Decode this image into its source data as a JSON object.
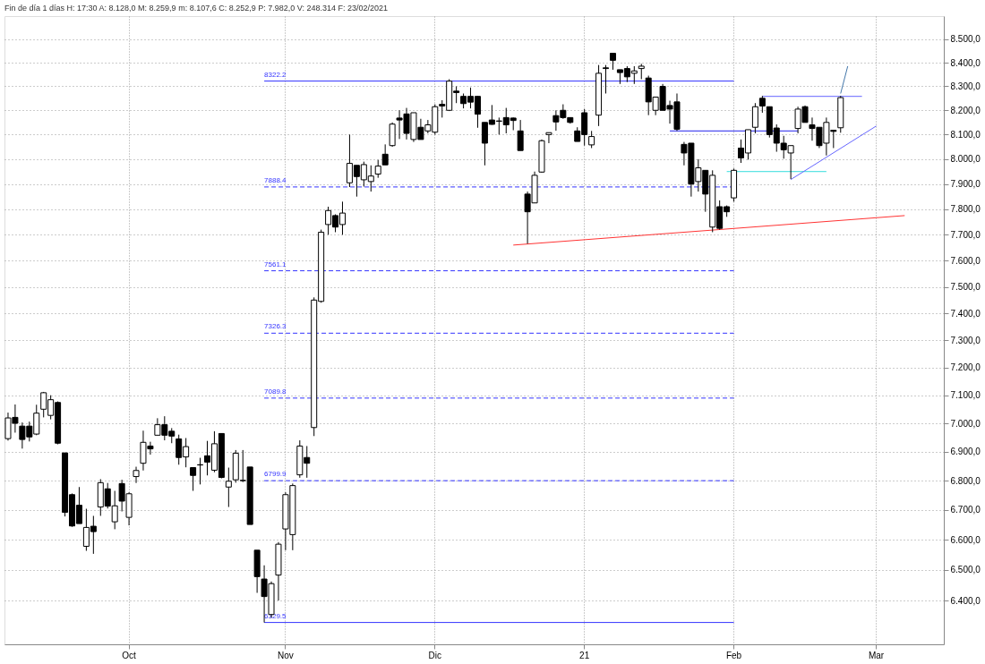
{
  "chart_data": {
    "type": "candlestick",
    "title": "Fin de día 1 días H: 17:30 A: 8.128,0 M: 8.259,9 m: 8.107,6 C: 8.252,9 P: 7.982,0 V: 248.314 F: 23/02/2021",
    "categories": [
      null,
      null,
      null,
      null,
      null,
      null,
      null,
      null,
      null,
      null,
      null,
      null,
      null,
      null,
      null,
      null,
      null,
      "Oct",
      null,
      null,
      null,
      null,
      null,
      null,
      null,
      null,
      null,
      null,
      null,
      null,
      null,
      null,
      null,
      null,
      null,
      null,
      null,
      null,
      null,
      "Nov",
      null,
      null,
      null,
      null,
      null,
      null,
      null,
      null,
      null,
      null,
      null,
      null,
      null,
      null,
      null,
      null,
      null,
      null,
      null,
      null,
      "Dic",
      null,
      null,
      null,
      null,
      null,
      null,
      null,
      null,
      null,
      null,
      null,
      null,
      null,
      null,
      null,
      null,
      null,
      null,
      null,
      null,
      "21",
      null,
      null,
      null,
      null,
      null,
      null,
      null,
      null,
      null,
      null,
      null,
      null,
      null,
      null,
      null,
      null,
      null,
      null,
      null,
      null,
      "Feb",
      null,
      null,
      null,
      null,
      null,
      null,
      null,
      null,
      null,
      null,
      null,
      null,
      null,
      null,
      null,
      null,
      null,
      null,
      null,
      "Mar",
      null,
      null,
      null,
      null,
      null,
      null,
      null,
      null,
      null
    ],
    "ohlc": [
      [
        6946,
        7038,
        6939,
        7019
      ],
      [
        7021,
        7067,
        6967,
        7000
      ],
      [
        6990,
        7003,
        6911,
        6943
      ],
      [
        6990,
        7006,
        6936,
        6952
      ],
      [
        6962,
        7066,
        6958,
        7036
      ],
      [
        7050,
        7112,
        7021,
        7109
      ],
      [
        7028,
        7100,
        7014,
        7084
      ],
      [
        7074,
        7078,
        6926,
        6930
      ],
      [
        6896,
        6896,
        6678,
        6692
      ],
      [
        6752,
        6756,
        6643,
        6646
      ],
      [
        6716,
        6778,
        6654,
        6654
      ],
      [
        6578,
        6704,
        6563,
        6641
      ],
      [
        6645,
        6680,
        6553,
        6627
      ],
      [
        6710,
        6805,
        6680,
        6793
      ],
      [
        6772,
        6792,
        6705,
        6713
      ],
      [
        6660,
        6765,
        6635,
        6714
      ],
      [
        6790,
        6803,
        6695,
        6730
      ],
      [
        6675,
        6760,
        6648,
        6755
      ],
      [
        6814,
        6848,
        6792,
        6835
      ],
      [
        6860,
        6974,
        6835,
        6933
      ],
      [
        6920,
        6935,
        6890,
        6910
      ],
      [
        6958,
        7018,
        6958,
        6995
      ],
      [
        6995,
        7025,
        6940,
        6958
      ],
      [
        6972,
        6983,
        6930,
        6955
      ],
      [
        6945,
        6960,
        6855,
        6880
      ],
      [
        6882,
        6948,
        6846,
        6918
      ],
      [
        6845,
        6845,
        6765,
        6818
      ],
      [
        6855,
        6879,
        6787,
        6854
      ],
      [
        6886,
        6938,
        6818,
        6864
      ],
      [
        6836,
        6972,
        6829,
        6928
      ],
      [
        6964,
        6964,
        6808,
        6811
      ],
      [
        6778,
        6845,
        6710,
        6798
      ],
      [
        6803,
        6906,
        6793,
        6895
      ],
      [
        6800,
        6906,
        6795,
        6801
      ],
      [
        6847,
        6847,
        6651,
        6651
      ],
      [
        6565,
        6565,
        6425,
        6478
      ],
      [
        6470,
        6515,
        6329.5,
        6413
      ],
      [
        6355,
        6462,
        6345,
        6455
      ],
      [
        6483,
        6592,
        6400,
        6585
      ],
      [
        6636,
        6760,
        6565,
        6752
      ],
      [
        6617,
        6790,
        6565,
        6783
      ],
      [
        6820,
        6940,
        6810,
        6920
      ],
      [
        6880,
        6920,
        6810,
        6860
      ],
      [
        6985,
        7460,
        6955,
        7450
      ],
      [
        7445,
        7720,
        7440,
        7710
      ],
      [
        7740,
        7810,
        7700,
        7795
      ],
      [
        7775,
        7780,
        7710,
        7730
      ],
      [
        7740,
        7830,
        7700,
        7785
      ],
      [
        7905,
        8100,
        7888,
        7983
      ],
      [
        7975,
        7975,
        7850,
        7930
      ],
      [
        7917,
        7990,
        7890,
        7978
      ],
      [
        7910,
        7975,
        7870,
        7932
      ],
      [
        7940,
        7997,
        7925,
        7972
      ],
      [
        8020,
        8060,
        7977,
        7977
      ],
      [
        8055,
        8150,
        8050,
        8143
      ],
      [
        8168,
        8200,
        8082,
        8160
      ],
      [
        8185,
        8210,
        8080,
        8105
      ],
      [
        8080,
        8190,
        8070,
        8190
      ],
      [
        8130,
        8165,
        8080,
        8080
      ],
      [
        8115,
        8160,
        8105,
        8140
      ],
      [
        8110,
        8225,
        8100,
        8215
      ],
      [
        8225,
        8242,
        8170,
        8218
      ],
      [
        8200,
        8330,
        8197,
        8322
      ],
      [
        8280,
        8300,
        8230,
        8274
      ],
      [
        8258,
        8270,
        8208,
        8228
      ],
      [
        8258,
        8295,
        8208,
        8234
      ],
      [
        8258,
        8260,
        8128,
        8184
      ],
      [
        8150,
        8150,
        7975,
        8065
      ],
      [
        8160,
        8222,
        8140,
        8142
      ],
      [
        8156,
        8170,
        8100,
        8155
      ],
      [
        8170,
        8210,
        8105,
        8140
      ],
      [
        8168,
        8170,
        8118,
        8158
      ],
      [
        8115,
        8160,
        8035,
        8035
      ],
      [
        7860,
        7870,
        7665,
        7790
      ],
      [
        7825,
        7950,
        7825,
        7935
      ],
      [
        7948,
        8080,
        7945,
        8075
      ],
      [
        8100,
        8108,
        8065,
        8108
      ],
      [
        8178,
        8200,
        8116,
        8152
      ],
      [
        8200,
        8225,
        8165,
        8170
      ],
      [
        8170,
        8170,
        8145,
        8150
      ],
      [
        8115,
        8130,
        8072,
        8072
      ],
      [
        8190,
        8205,
        8055,
        8100
      ],
      [
        8058,
        8115,
        8045,
        8092
      ],
      [
        8180,
        8390,
        8135,
        8355
      ],
      [
        8378,
        8390,
        8270,
        8375
      ],
      [
        8440,
        8440,
        8370,
        8410
      ],
      [
        8370,
        8370,
        8310,
        8358
      ],
      [
        8375,
        8385,
        8318,
        8340
      ],
      [
        8355,
        8385,
        8310,
        8365
      ],
      [
        8375,
        8395,
        8330,
        8385
      ],
      [
        8335,
        8345,
        8180,
        8235
      ],
      [
        8200,
        8255,
        8180,
        8255
      ],
      [
        8300,
        8310,
        8200,
        8200
      ],
      [
        8220,
        8240,
        8145,
        8205
      ],
      [
        8235,
        8270,
        8115,
        8122
      ],
      [
        8060,
        8070,
        7975,
        8025
      ],
      [
        8065,
        8065,
        7850,
        7900
      ],
      [
        7910,
        8000,
        7870,
        7965
      ],
      [
        7955,
        7955,
        7790,
        7860
      ],
      [
        7730,
        7955,
        7710,
        7935
      ],
      [
        7810,
        7835,
        7720,
        7725
      ],
      [
        7810,
        7815,
        7770,
        7790
      ],
      [
        7845,
        7962,
        7830,
        7955
      ],
      [
        8045,
        8080,
        7985,
        8005
      ],
      [
        8025,
        8120,
        7998,
        8120
      ],
      [
        8130,
        8230,
        8105,
        8215
      ],
      [
        8250,
        8260,
        8190,
        8218
      ],
      [
        8215,
        8215,
        8088,
        8100
      ],
      [
        8127,
        8142,
        8030,
        8065
      ],
      [
        8065,
        8095,
        8002,
        8038
      ],
      [
        8025,
        8055,
        7920,
        8055
      ],
      [
        8125,
        8215,
        8105,
        8205
      ],
      [
        8215,
        8220,
        8150,
        8150
      ],
      [
        8140,
        8170,
        8075,
        8125
      ],
      [
        8130,
        8130,
        8045,
        8055
      ],
      [
        8065,
        8170,
        8015,
        8150
      ],
      [
        8118,
        8118,
        8045,
        8113
      ],
      [
        8128.0,
        8259.9,
        8107.6,
        8252.9
      ],
      null,
      null,
      null,
      null,
      null,
      null,
      null,
      null,
      null,
      null,
      null,
      null,
      null,
      null
    ],
    "series": [
      {
        "type": "line",
        "color": "#ff3333",
        "values": [
          null,
          null,
          null,
          null,
          null,
          null,
          null,
          null,
          null,
          null,
          null,
          null,
          null,
          null,
          null,
          null,
          null,
          null,
          null,
          null,
          null,
          null,
          null,
          null,
          null,
          null,
          null,
          null,
          null,
          null,
          null,
          null,
          null,
          null,
          null,
          null,
          null,
          null,
          null,
          null,
          null,
          null,
          null,
          null,
          null,
          null,
          null,
          null,
          null,
          null,
          null,
          null,
          null,
          null,
          null,
          null,
          null,
          null,
          null,
          null,
          null,
          null,
          null,
          null,
          null,
          null,
          null,
          null,
          null,
          null,
          null,
          7660,
          null,
          null,
          null,
          null,
          null,
          null,
          null,
          null,
          null,
          null,
          null,
          null,
          null,
          null,
          null,
          null,
          null,
          null,
          null,
          null,
          null,
          null,
          null,
          null,
          null,
          null,
          null,
          null,
          null,
          null,
          null,
          null,
          null,
          null,
          null,
          null,
          null,
          null,
          null,
          null,
          null,
          null,
          null,
          null,
          null,
          null,
          null,
          null,
          null,
          null,
          null,
          null,
          null,
          null,
          7775,
          null,
          null,
          null,
          null,
          null
        ]
      },
      {
        "type": "line",
        "color": "#2222ee",
        "values": [
          null,
          null,
          null,
          null,
          null,
          null,
          null,
          null,
          null,
          null,
          null,
          null,
          null,
          null,
          null,
          null,
          null,
          null,
          null,
          null,
          null,
          null,
          null,
          null,
          null,
          null,
          null,
          null,
          null,
          null,
          null,
          null,
          null,
          null,
          null,
          null,
          null,
          null,
          null,
          null,
          null,
          null,
          null,
          null,
          null,
          null,
          null,
          null,
          null,
          null,
          null,
          null,
          null,
          null,
          null,
          null,
          null,
          null,
          null,
          null,
          null,
          null,
          null,
          null,
          null,
          null,
          null,
          null,
          null,
          null,
          null,
          null,
          null,
          null,
          null,
          null,
          null,
          null,
          null,
          null,
          null,
          null,
          null,
          null,
          null,
          null,
          null,
          null,
          null,
          null,
          null,
          null,
          null,
          8115,
          null,
          null,
          null,
          null,
          null,
          null,
          null,
          null,
          null,
          null,
          null,
          null,
          null,
          null,
          null,
          null,
          null,
          8115,
          null,
          null,
          null,
          null,
          null,
          null,
          null,
          null,
          null,
          null,
          null,
          null,
          null,
          null,
          null,
          null,
          null,
          null,
          null,
          null
        ]
      },
      {
        "type": "line",
        "color": "#6666ff",
        "values": [
          null,
          null,
          null,
          null,
          null,
          null,
          null,
          null,
          null,
          null,
          null,
          null,
          null,
          null,
          null,
          null,
          null,
          null,
          null,
          null,
          null,
          null,
          null,
          null,
          null,
          null,
          null,
          null,
          null,
          null,
          null,
          null,
          null,
          null,
          null,
          null,
          null,
          null,
          null,
          null,
          null,
          null,
          null,
          null,
          null,
          null,
          null,
          null,
          null,
          null,
          null,
          null,
          null,
          null,
          null,
          null,
          null,
          null,
          null,
          null,
          null,
          null,
          null,
          null,
          null,
          null,
          null,
          null,
          null,
          null,
          null,
          null,
          null,
          null,
          null,
          null,
          null,
          null,
          null,
          null,
          null,
          null,
          null,
          null,
          null,
          null,
          null,
          null,
          null,
          null,
          null,
          null,
          null,
          null,
          null,
          null,
          null,
          null,
          null,
          null,
          null,
          null,
          null,
          null,
          null,
          null,
          8258,
          null,
          null,
          null,
          null,
          null,
          null,
          null,
          null,
          null,
          null,
          null,
          null,
          null,
          8258,
          null,
          null,
          null,
          null,
          null,
          null,
          null,
          null,
          null,
          null,
          null
        ]
      },
      {
        "type": "line",
        "color": "#33dddd",
        "values": [
          null,
          null,
          null,
          null,
          null,
          null,
          null,
          null,
          null,
          null,
          null,
          null,
          null,
          null,
          null,
          null,
          null,
          null,
          null,
          null,
          null,
          null,
          null,
          null,
          null,
          null,
          null,
          null,
          null,
          null,
          null,
          null,
          null,
          null,
          null,
          null,
          null,
          null,
          null,
          null,
          null,
          null,
          null,
          null,
          null,
          null,
          null,
          null,
          null,
          null,
          null,
          null,
          null,
          null,
          null,
          null,
          null,
          null,
          null,
          null,
          null,
          null,
          null,
          null,
          null,
          null,
          null,
          null,
          null,
          null,
          null,
          null,
          null,
          null,
          null,
          null,
          null,
          null,
          null,
          null,
          null,
          null,
          null,
          null,
          null,
          null,
          null,
          null,
          null,
          null,
          null,
          null,
          null,
          null,
          null,
          null,
          null,
          null,
          null,
          null,
          null,
          7950,
          null,
          null,
          null,
          null,
          null,
          null,
          null,
          null,
          null,
          null,
          null,
          null,
          null,
          7950,
          null,
          null,
          null,
          null,
          null,
          null,
          null,
          null,
          null,
          null,
          null,
          null,
          null,
          null,
          null,
          null
        ]
      },
      {
        "type": "line",
        "color": "#6666ff",
        "values": [
          null,
          null,
          null,
          null,
          null,
          null,
          null,
          null,
          null,
          null,
          null,
          null,
          null,
          null,
          null,
          null,
          null,
          null,
          null,
          null,
          null,
          null,
          null,
          null,
          null,
          null,
          null,
          null,
          null,
          null,
          null,
          null,
          null,
          null,
          null,
          null,
          null,
          null,
          null,
          null,
          null,
          null,
          null,
          null,
          null,
          null,
          null,
          null,
          null,
          null,
          null,
          null,
          null,
          null,
          null,
          null,
          null,
          null,
          null,
          null,
          null,
          null,
          null,
          null,
          null,
          null,
          null,
          null,
          null,
          null,
          null,
          null,
          null,
          null,
          null,
          null,
          null,
          null,
          null,
          null,
          null,
          null,
          null,
          null,
          null,
          null,
          null,
          null,
          null,
          null,
          null,
          null,
          null,
          null,
          null,
          null,
          null,
          null,
          null,
          null,
          null,
          null,
          null,
          null,
          null,
          null,
          null,
          null,
          null,
          null,
          7918,
          null,
          null,
          null,
          null,
          null,
          null,
          null,
          null,
          null,
          null,
          null,
          8135,
          null,
          null,
          null,
          null,
          null,
          null,
          null,
          null,
          null
        ]
      },
      {
        "type": "line",
        "color": "#4477aa",
        "values": [
          null,
          null,
          null,
          null,
          null,
          null,
          null,
          null,
          null,
          null,
          null,
          null,
          null,
          null,
          null,
          null,
          null,
          null,
          null,
          null,
          null,
          null,
          null,
          null,
          null,
          null,
          null,
          null,
          null,
          null,
          null,
          null,
          null,
          null,
          null,
          null,
          null,
          null,
          null,
          null,
          null,
          null,
          null,
          null,
          null,
          null,
          null,
          null,
          null,
          null,
          null,
          null,
          null,
          null,
          null,
          null,
          null,
          null,
          null,
          null,
          null,
          null,
          null,
          null,
          null,
          null,
          null,
          null,
          null,
          null,
          null,
          null,
          null,
          null,
          null,
          null,
          null,
          null,
          null,
          null,
          null,
          null,
          null,
          null,
          null,
          null,
          null,
          null,
          null,
          null,
          null,
          null,
          null,
          null,
          null,
          null,
          null,
          null,
          null,
          null,
          null,
          null,
          null,
          null,
          null,
          null,
          null,
          null,
          null,
          null,
          null,
          null,
          null,
          null,
          null,
          null,
          null,
          8270,
          8385,
          null,
          null,
          null,
          null,
          null,
          null,
          null,
          null,
          null,
          null,
          null,
          null,
          null
        ]
      }
    ],
    "ref_lines": [
      {
        "axis": "y",
        "value": 8322.2,
        "label": "8322.2",
        "color": "#3333ff",
        "line_style": "solid"
      },
      {
        "axis": "y",
        "value": 7888.4,
        "label": "7888.4",
        "color": "#3333ff",
        "line_style": "dashed"
      },
      {
        "axis": "y",
        "value": 7561.1,
        "label": "7561.1",
        "color": "#3333ff",
        "line_style": "dashed"
      },
      {
        "axis": "y",
        "value": 7326.3,
        "label": "7326.3",
        "color": "#3333ff",
        "line_style": "dashed"
      },
      {
        "axis": "y",
        "value": 7089.8,
        "label": "7089.8",
        "color": "#3333ff",
        "line_style": "dashed"
      },
      {
        "axis": "y",
        "value": 6799.9,
        "label": "6799.9",
        "color": "#3333ff",
        "line_style": "dashed"
      },
      {
        "axis": "y",
        "value": 6329.5,
        "label": "6329.5",
        "color": "#3333ff",
        "line_style": "solid"
      }
    ],
    "log": true,
    "ylim": [
      6260,
      8600
    ],
    "yticks": [
      {
        "value": 6400,
        "label": "6.400,0"
      },
      {
        "value": 6500,
        "label": "6.500,0"
      },
      {
        "value": 6600,
        "label": "6.600,0"
      },
      {
        "value": 6700,
        "label": "6.700,0"
      },
      {
        "value": 6800,
        "label": "6.800,0"
      },
      {
        "value": 6900,
        "label": "6.900,0"
      },
      {
        "value": 7000,
        "label": "7.000,0"
      },
      {
        "value": 7100,
        "label": "7.100,0"
      },
      {
        "value": 7200,
        "label": "7.200,0"
      },
      {
        "value": 7300,
        "label": "7.300,0"
      },
      {
        "value": 7400,
        "label": "7.400,0"
      },
      {
        "value": 7500,
        "label": "7.500,0"
      },
      {
        "value": 7600,
        "label": "7.600,0"
      },
      {
        "value": 7700,
        "label": "7.700,0"
      },
      {
        "value": 7800,
        "label": "7.800,0"
      },
      {
        "value": 7900,
        "label": "7.900,0"
      },
      {
        "value": 8000,
        "label": "8.000,0"
      },
      {
        "value": 8100,
        "label": "8.100,0"
      },
      {
        "value": 8200,
        "label": "8.200,0"
      },
      {
        "value": 8300,
        "label": "8.300,0"
      },
      {
        "value": 8400,
        "label": "8.400,0"
      },
      {
        "value": 8500,
        "label": "8.500,0"
      }
    ],
    "grid": true
  }
}
